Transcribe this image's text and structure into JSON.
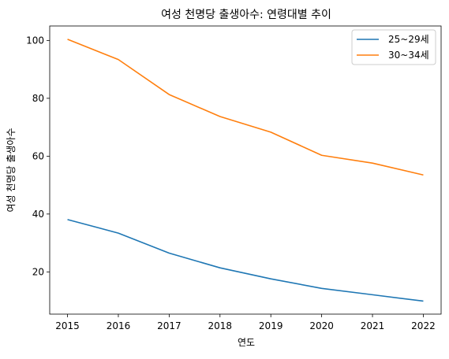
{
  "chart_data": {
    "type": "line",
    "title": "여성 천명당 출생아수: 연령대별 추이",
    "xlabel": "연도",
    "ylabel": "여성 천명당 출생아수",
    "x": [
      2015,
      2016,
      2017,
      2018,
      2019,
      2020,
      2021,
      2022
    ],
    "x_tick_labels": [
      "2015",
      "2016",
      "2017",
      "2018",
      "2019",
      "2020",
      "2021",
      "2022"
    ],
    "y_ticks": [
      20,
      40,
      60,
      80,
      100
    ],
    "y_tick_labels": [
      "20",
      "40",
      "60",
      "80",
      "100"
    ],
    "xlim": [
      2014.65,
      2022.35
    ],
    "ylim": [
      5.4,
      105.0
    ],
    "grid": false,
    "legend_position": "top-right",
    "series": [
      {
        "name": "25~29세",
        "color": "#1f77b4",
        "values": [
          38.1,
          33.4,
          26.5,
          21.4,
          17.6,
          14.3,
          12.1,
          9.9
        ]
      },
      {
        "name": "30~34세",
        "color": "#ff7f0e",
        "values": [
          100.4,
          93.4,
          81.3,
          73.7,
          68.3,
          60.3,
          57.6,
          53.5
        ]
      }
    ]
  }
}
